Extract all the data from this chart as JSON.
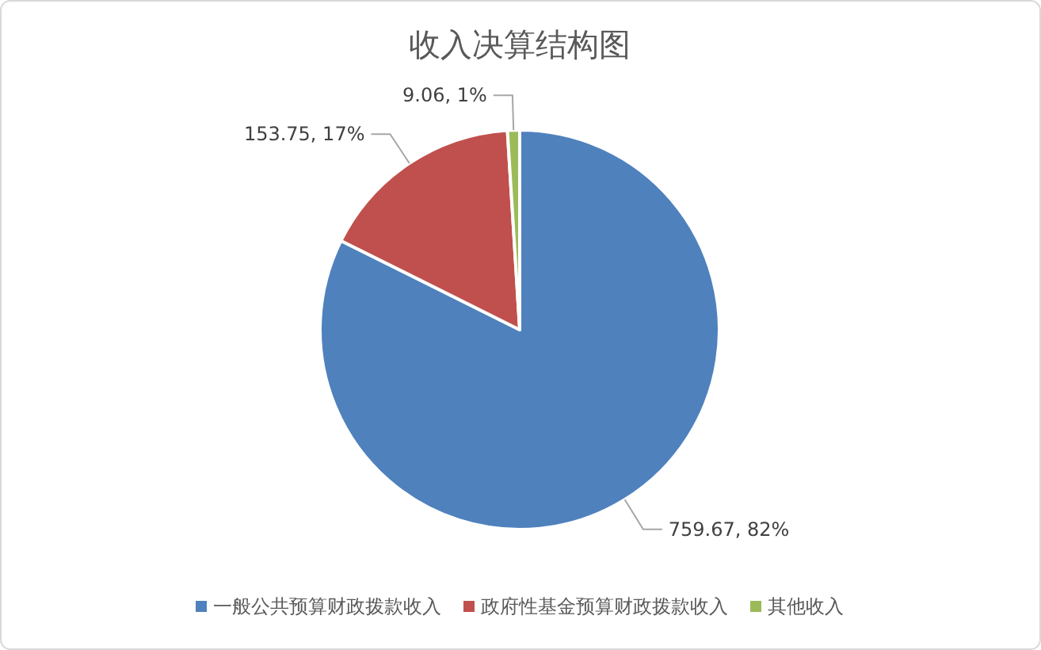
{
  "chart_data": {
    "type": "pie",
    "title": "收入决算结构图",
    "categories": [
      "一般公共预算财政拨款收入",
      "政府性基金预算财政拨款收入",
      "其他收入"
    ],
    "values": [
      759.67,
      153.75,
      9.06
    ],
    "colors": [
      "#4f81bd",
      "#c0504d",
      "#9bbb59"
    ],
    "value_labels": [
      "759.67, 82%",
      "153.75, 17%",
      "9.06, 1%"
    ],
    "legend": "bottom"
  }
}
